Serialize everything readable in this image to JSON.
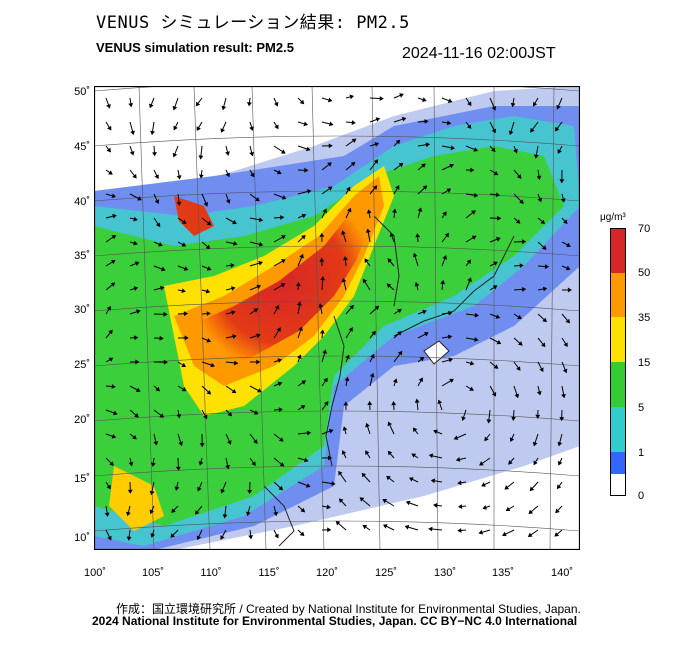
{
  "header": {
    "title_jp": "VENUS シミュレーション結果: PM2.5",
    "title_en": "VENUS simulation result: PM2.5",
    "timestamp": "2024-11-16 02:00JST"
  },
  "axes": {
    "y_ticks": [
      "50˚",
      "45˚",
      "40˚",
      "35˚",
      "30˚",
      "25˚",
      "20˚",
      "15˚",
      "10˚"
    ],
    "x_ticks": [
      "100˚",
      "105˚",
      "110˚",
      "115˚",
      "120˚",
      "125˚",
      "130˚",
      "135˚",
      "140˚"
    ]
  },
  "legend": {
    "unit": "μg/m³",
    "ticks": [
      "70",
      "50",
      "35",
      "15",
      "5",
      "1",
      "0"
    ],
    "colors": [
      "#d62728",
      "#ff9900",
      "#ffe100",
      "#33cc33",
      "#33cccc",
      "#3366ff",
      "#ffffff"
    ]
  },
  "credits": {
    "line1": "作成：国立環境研究所 / Created by National Institute for Environmental Studies, Japan.",
    "line2": "2024 National Institute for Environmental Studies, Japan. CC BY−NC 4.0 International"
  }
}
